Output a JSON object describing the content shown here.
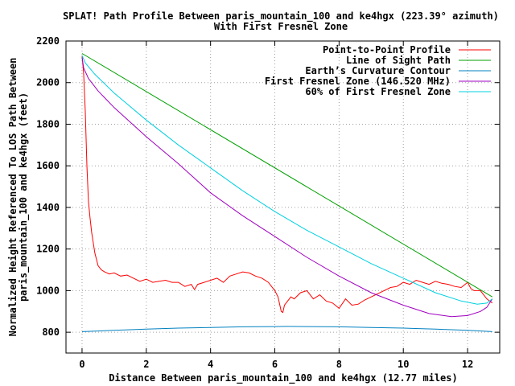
{
  "chart_data": {
    "type": "line",
    "title": "SPLAT! Path Profile Between paris_mountain_100 and ke4hgx (223.39° azimuth)",
    "subtitle": "With First Fresnel Zone",
    "xlabel": "Distance Between paris_mountain_100 and ke4hgx (12.77 miles)",
    "ylabel_lines": [
      "Normalized Height Referenced To LOS Path Between",
      "paris_mountain_100 and ke4hgx (feet)"
    ],
    "xlim": [
      -0.5,
      13.0
    ],
    "ylim": [
      700,
      2200
    ],
    "x_ticks": [
      0,
      2,
      4,
      6,
      8,
      10,
      12
    ],
    "y_ticks": [
      800,
      1000,
      1200,
      1400,
      1600,
      1800,
      2000,
      2200
    ],
    "grid": true,
    "legend_position": "top-right",
    "series": [
      {
        "name": "Point-to-Point Profile",
        "color": "#ff0000",
        "x": [
          0.0,
          0.05,
          0.1,
          0.15,
          0.2,
          0.25,
          0.3,
          0.35,
          0.4,
          0.5,
          0.6,
          0.7,
          0.85,
          1.0,
          1.2,
          1.4,
          1.6,
          1.8,
          2.0,
          2.2,
          2.4,
          2.6,
          2.8,
          3.0,
          3.2,
          3.4,
          3.5,
          3.6,
          3.8,
          4.0,
          4.2,
          4.4,
          4.6,
          4.8,
          5.0,
          5.2,
          5.4,
          5.6,
          5.8,
          6.0,
          6.1,
          6.2,
          6.25,
          6.3,
          6.4,
          6.5,
          6.6,
          6.8,
          7.0,
          7.2,
          7.4,
          7.6,
          7.8,
          8.0,
          8.2,
          8.4,
          8.6,
          8.8,
          9.0,
          9.2,
          9.4,
          9.6,
          9.8,
          10.0,
          10.2,
          10.4,
          10.6,
          10.8,
          11.0,
          11.2,
          11.4,
          11.6,
          11.8,
          12.0,
          12.1,
          12.2,
          12.4,
          12.6,
          12.77
        ],
        "y": [
          2130,
          2040,
          1860,
          1600,
          1430,
          1350,
          1280,
          1230,
          1180,
          1120,
          1100,
          1090,
          1080,
          1085,
          1070,
          1075,
          1060,
          1045,
          1055,
          1040,
          1045,
          1050,
          1040,
          1040,
          1020,
          1030,
          1005,
          1030,
          1040,
          1050,
          1060,
          1040,
          1070,
          1080,
          1090,
          1085,
          1070,
          1060,
          1040,
          1000,
          970,
          900,
          895,
          930,
          950,
          970,
          960,
          990,
          1000,
          960,
          980,
          950,
          940,
          915,
          960,
          930,
          935,
          955,
          970,
          985,
          1000,
          1015,
          1020,
          1040,
          1030,
          1050,
          1040,
          1030,
          1045,
          1035,
          1030,
          1020,
          1015,
          1040,
          1010,
          1000,
          1000,
          960,
          940
        ]
      },
      {
        "name": "Line of Sight Path",
        "color": "#00a000",
        "x": [
          0.0,
          12.77
        ],
        "y": [
          2140,
          970
        ]
      },
      {
        "name": "Earth’s Curvature Contour",
        "color": "#0080c0",
        "x": [
          0.0,
          1.0,
          2.0,
          3.0,
          4.0,
          5.0,
          6.0,
          6.385,
          7.0,
          8.0,
          9.0,
          10.0,
          11.0,
          12.0,
          12.77
        ],
        "y": [
          803,
          809,
          815,
          820,
          823,
          826,
          827,
          828,
          827,
          826,
          823,
          820,
          815,
          809,
          803
        ]
      },
      {
        "name": "First Fresnel Zone (146.520 MHz)",
        "color": "#a000c0",
        "x": [
          0.0,
          0.05,
          0.2,
          0.5,
          1.0,
          2.0,
          3.0,
          4.0,
          5.0,
          6.0,
          7.0,
          8.0,
          9.0,
          10.0,
          10.8,
          11.5,
          12.0,
          12.4,
          12.6,
          12.77
        ],
        "y": [
          2120,
          2070,
          2020,
          1960,
          1880,
          1740,
          1610,
          1470,
          1360,
          1260,
          1160,
          1070,
          990,
          930,
          890,
          875,
          880,
          900,
          920,
          960
        ]
      },
      {
        "name": "60% of First Fresnel Zone",
        "color": "#00d0e0",
        "x": [
          0.0,
          0.1,
          0.4,
          1.0,
          2.0,
          3.0,
          4.0,
          5.0,
          6.0,
          7.0,
          8.0,
          9.0,
          10.0,
          11.0,
          11.8,
          12.3,
          12.6,
          12.77
        ],
        "y": [
          2130,
          2095,
          2040,
          1950,
          1820,
          1700,
          1590,
          1480,
          1380,
          1290,
          1210,
          1130,
          1060,
          990,
          950,
          935,
          940,
          960
        ]
      }
    ]
  }
}
